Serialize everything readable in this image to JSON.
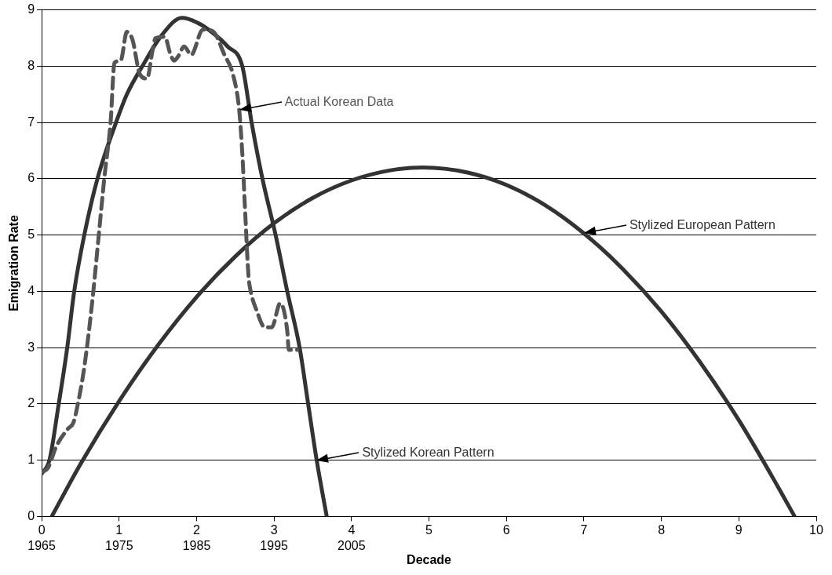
{
  "chart_data": {
    "type": "line",
    "xlabel": "Decade",
    "ylabel": "Emigration Rate",
    "xlim": [
      0,
      10
    ],
    "ylim": [
      0,
      9
    ],
    "xticks": [
      {
        "value": 0,
        "label": "0\n1965"
      },
      {
        "value": 1,
        "label": "1\n1975"
      },
      {
        "value": 2,
        "label": "2\n1985"
      },
      {
        "value": 3,
        "label": "3\n1995"
      },
      {
        "value": 4,
        "label": "4\n2005"
      },
      5,
      6,
      7,
      8,
      9,
      10
    ],
    "yticks": [
      0,
      1,
      2,
      3,
      4,
      5,
      6,
      7,
      8,
      9
    ],
    "grid": "y",
    "legend": false,
    "marker": "none",
    "series": [
      {
        "name": "Actual Korean Data",
        "color": "#555555",
        "line_style": "dashed",
        "x": [
          0,
          0.08,
          0.19,
          0.34,
          0.41,
          0.48,
          0.55,
          0.65,
          0.74,
          0.81,
          0.89,
          0.94,
          1.02,
          1.1,
          1.17,
          1.27,
          1.36,
          1.43,
          1.47,
          1.59,
          1.66,
          1.71,
          1.76,
          1.84,
          1.93,
          2.08,
          2.21,
          2.36,
          2.47,
          2.55,
          2.59,
          2.63,
          2.67,
          2.69,
          2.78,
          2.88,
          2.97,
          3.08,
          3.17,
          3.19,
          3.3
        ],
        "values": [
          0.79,
          0.86,
          1.25,
          1.56,
          1.67,
          2.09,
          2.65,
          3.78,
          5.04,
          6.03,
          7.01,
          8.06,
          8.1,
          8.61,
          8.48,
          7.85,
          7.78,
          8.27,
          8.5,
          8.52,
          8.22,
          8.1,
          8.17,
          8.35,
          8.2,
          8.65,
          8.62,
          8.2,
          7.85,
          7.22,
          6.45,
          5.32,
          4.27,
          4.06,
          3.64,
          3.36,
          3.36,
          3.79,
          3.3,
          2.96,
          2.96
        ]
      },
      {
        "name": "Stylized Korean Pattern",
        "color": "#333333",
        "line_style": "solid",
        "x": [
          0,
          0.1,
          0.22,
          0.33,
          0.42,
          0.55,
          0.72,
          0.96,
          1.1,
          1.3,
          1.55,
          1.81,
          2.0,
          2.2,
          2.4,
          2.59,
          2.71,
          2.85,
          3.02,
          3.17,
          3.33,
          3.44,
          3.55,
          3.68
        ],
        "values": [
          0.76,
          1,
          2,
          3,
          4,
          5,
          6,
          7,
          7.5,
          8,
          8.55,
          8.86,
          8.78,
          8.6,
          8.35,
          8,
          7,
          6,
          5,
          4,
          3,
          2,
          1,
          0
        ]
      },
      {
        "name": "Stylized European Pattern",
        "color": "#333333",
        "line_style": "solid",
        "x": [
          0.13,
          0.5,
          1,
          1.5,
          2,
          2.5,
          3,
          3.5,
          4,
          4.5,
          4.92,
          5.5,
          6,
          6.5,
          7,
          7.5,
          8,
          8.5,
          9,
          9.5,
          9.72
        ],
        "values": [
          0,
          0.93,
          2.05,
          3.04,
          3.9,
          4.62,
          5.21,
          5.66,
          5.97,
          6.15,
          6.2,
          6.11,
          5.89,
          5.53,
          5.03,
          4.4,
          3.64,
          2.74,
          1.71,
          0.54,
          0
        ]
      }
    ]
  }
}
